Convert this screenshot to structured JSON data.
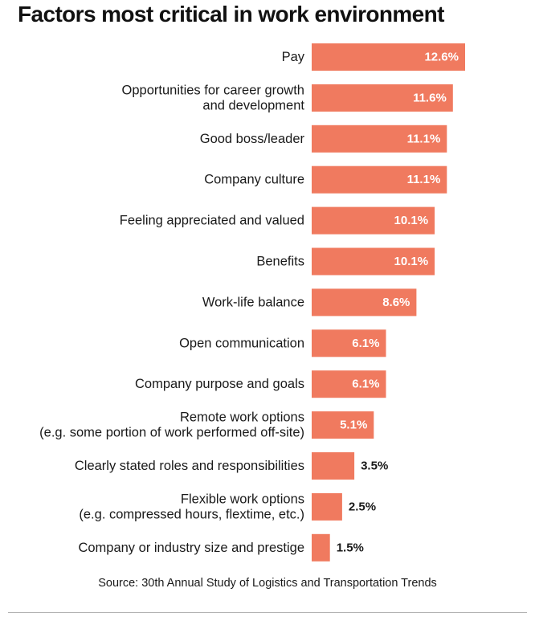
{
  "chart_data": {
    "type": "bar",
    "orientation": "horizontal",
    "title": "Factors most critical in work environment",
    "categories": [
      [
        "Pay"
      ],
      [
        "Opportunities for career growth",
        "and development"
      ],
      [
        "Good boss/leader"
      ],
      [
        "Company culture"
      ],
      [
        "Feeling appreciated and valued"
      ],
      [
        "Benefits"
      ],
      [
        "Work-life balance"
      ],
      [
        "Open communication"
      ],
      [
        "Company purpose and goals"
      ],
      [
        "Remote work options",
        "(e.g. some portion of work performed off-site)"
      ],
      [
        "Clearly stated roles and responsibilities"
      ],
      [
        "Flexible work options",
        "(e.g. compressed hours, flextime, etc.)"
      ],
      [
        "Company or industry size and prestige"
      ]
    ],
    "values": [
      12.6,
      11.6,
      11.1,
      11.1,
      10.1,
      10.1,
      8.6,
      6.1,
      6.1,
      5.1,
      3.5,
      2.5,
      1.5
    ],
    "value_labels": [
      "12.6%",
      "11.6%",
      "11.1%",
      "11.1%",
      "10.1%",
      "10.1%",
      "8.6%",
      "6.1%",
      "6.1%",
      "5.1%",
      "3.5%",
      "2.5%",
      "1.5%"
    ],
    "unit": "%",
    "xlim": [
      0,
      12.6
    ],
    "grid": false,
    "legend": "none",
    "bar_color": "#f07a5f",
    "source": "Source: 30th Annual Study of Logistics and Transportation Trends"
  }
}
